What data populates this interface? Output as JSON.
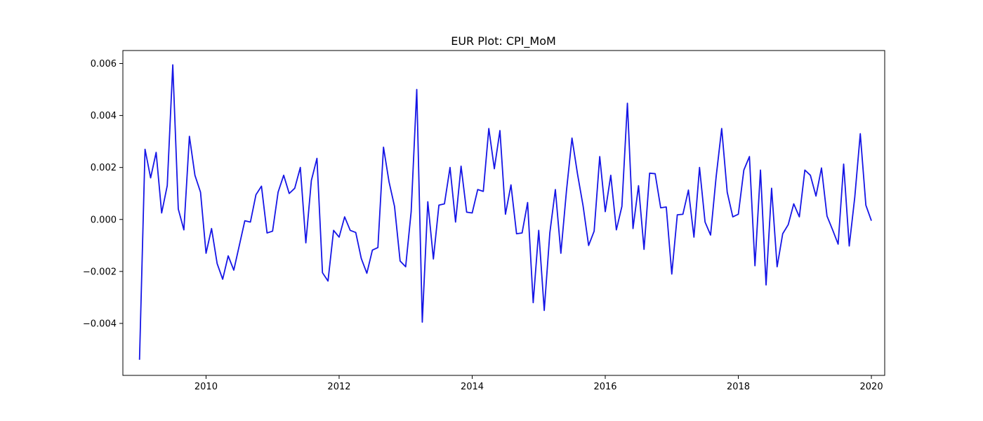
{
  "chart_data": {
    "type": "line",
    "title": "EUR Plot: CPI_MoM",
    "xlabel": "",
    "ylabel": "",
    "grid": false,
    "xlim": [
      2008.75,
      2020.2
    ],
    "ylim": [
      -0.006,
      0.0065
    ],
    "x_ticks": [
      2010,
      2012,
      2014,
      2016,
      2018,
      2020
    ],
    "x_tick_labels": [
      "2010",
      "2012",
      "2014",
      "2016",
      "2018",
      "2020"
    ],
    "y_ticks": [
      -0.004,
      -0.002,
      0.0,
      0.002,
      0.004,
      0.006
    ],
    "y_tick_labels": [
      "−0.004",
      "−0.002",
      "0.000",
      "0.002",
      "0.004",
      "0.006"
    ],
    "series": [
      {
        "color": "#1515e6",
        "x": [
          2009.0,
          2009.083,
          2009.167,
          2009.25,
          2009.333,
          2009.417,
          2009.5,
          2009.583,
          2009.667,
          2009.75,
          2009.833,
          2009.917,
          2010.0,
          2010.083,
          2010.167,
          2010.25,
          2010.333,
          2010.417,
          2010.5,
          2010.583,
          2010.667,
          2010.75,
          2010.833,
          2010.917,
          2011.0,
          2011.083,
          2011.167,
          2011.25,
          2011.333,
          2011.417,
          2011.5,
          2011.583,
          2011.667,
          2011.75,
          2011.833,
          2011.917,
          2012.0,
          2012.083,
          2012.167,
          2012.25,
          2012.333,
          2012.417,
          2012.5,
          2012.583,
          2012.667,
          2012.75,
          2012.833,
          2012.917,
          2013.0,
          2013.083,
          2013.167,
          2013.25,
          2013.333,
          2013.417,
          2013.5,
          2013.583,
          2013.667,
          2013.75,
          2013.833,
          2013.917,
          2014.0,
          2014.083,
          2014.167,
          2014.25,
          2014.333,
          2014.417,
          2014.5,
          2014.583,
          2014.667,
          2014.75,
          2014.833,
          2014.917,
          2015.0,
          2015.083,
          2015.167,
          2015.25,
          2015.333,
          2015.417,
          2015.5,
          2015.583,
          2015.667,
          2015.75,
          2015.833,
          2015.917,
          2016.0,
          2016.083,
          2016.167,
          2016.25,
          2016.333,
          2016.417,
          2016.5,
          2016.583,
          2016.667,
          2016.75,
          2016.833,
          2016.917,
          2017.0,
          2017.083,
          2017.167,
          2017.25,
          2017.333,
          2017.417,
          2017.5,
          2017.583,
          2017.667,
          2017.75,
          2017.833,
          2017.917,
          2018.0,
          2018.083,
          2018.167,
          2018.25,
          2018.333,
          2018.417,
          2018.5,
          2018.583,
          2018.667,
          2018.75,
          2018.833,
          2018.917,
          2019.0,
          2019.083,
          2019.167,
          2019.25,
          2019.333,
          2019.417,
          2019.5,
          2019.583,
          2019.667,
          2019.75,
          2019.833,
          2019.917,
          2020.0
        ],
        "y": [
          -0.0054,
          0.0027,
          0.0016,
          0.00258,
          0.00025,
          0.0013,
          0.00595,
          0.0004,
          -0.0004,
          0.0032,
          0.0017,
          0.00105,
          -0.0013,
          -0.00035,
          -0.0017,
          -0.0023,
          -0.0014,
          -0.00195,
          -0.001,
          -5e-05,
          -0.0001,
          0.00095,
          0.00128,
          -0.00052,
          -0.00045,
          0.00105,
          0.0017,
          0.001,
          0.0012,
          0.002,
          -0.0009,
          0.0015,
          0.00235,
          -0.00205,
          -0.00237,
          -0.00042,
          -0.00068,
          0.0001,
          -0.00042,
          -0.0005,
          -0.0015,
          -0.00207,
          -0.00118,
          -0.00108,
          0.00278,
          0.00145,
          0.0005,
          -0.0016,
          -0.00182,
          0.0003,
          0.005,
          -0.00395,
          0.00068,
          -0.00152,
          0.00055,
          0.0006,
          0.002,
          -0.0001,
          0.00205,
          0.00028,
          0.00025,
          0.00115,
          0.00108,
          0.0035,
          0.00195,
          0.00342,
          0.0002,
          0.00133,
          -0.00055,
          -0.00052,
          0.00065,
          -0.0032,
          -0.00042,
          -0.0035,
          -0.00052,
          0.00115,
          -0.0013,
          0.0011,
          0.00313,
          0.00175,
          0.00052,
          -0.001,
          -0.00045,
          0.00242,
          0.0003,
          0.0017,
          -0.0004,
          0.0005,
          0.00447,
          -0.00035,
          0.0013,
          -0.00115,
          0.00178,
          0.00176,
          0.00045,
          0.00048,
          -0.0021,
          0.00018,
          0.0002,
          0.00113,
          -0.00068,
          0.002,
          -0.0001,
          -0.0006,
          0.00165,
          0.0035,
          0.00105,
          0.0001,
          0.0002,
          0.0019,
          0.00242,
          -0.00178,
          0.0019,
          -0.00252,
          0.0012,
          -0.00182,
          -0.00055,
          -0.0002,
          0.0006,
          0.0001,
          0.0019,
          0.0017,
          0.0009,
          0.00198,
          0.00013,
          -0.0004,
          -0.00095,
          0.00213,
          -0.00102,
          0.00085,
          0.0033,
          0.00055,
          -5e-05
        ]
      }
    ]
  }
}
